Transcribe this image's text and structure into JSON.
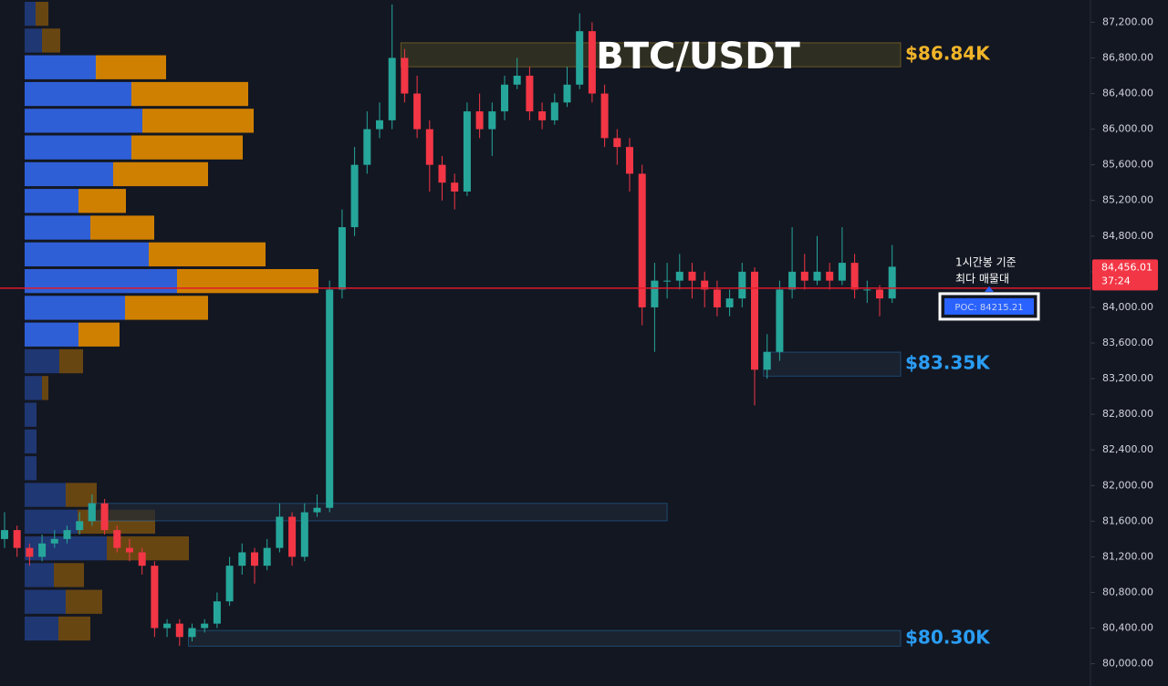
{
  "chart_data": {
    "type": "candlestick",
    "title": "BTC/USDT",
    "colors": {
      "up": "#26a69a",
      "down": "#f23645",
      "background": "#131722"
    },
    "ylim": [
      79750,
      87450
    ],
    "yticks": [
      {
        "value": 80000,
        "label": "80,000.00"
      },
      {
        "value": 80400,
        "label": "80,400.00"
      },
      {
        "value": 80800,
        "label": "80,800.00"
      },
      {
        "value": 81200,
        "label": "81,200.00"
      },
      {
        "value": 81600,
        "label": "81,600.00"
      },
      {
        "value": 82000,
        "label": "82,000.00"
      },
      {
        "value": 82400,
        "label": "82,400.00"
      },
      {
        "value": 82800,
        "label": "82,800.00"
      },
      {
        "value": 83200,
        "label": "83,200.00"
      },
      {
        "value": 83600,
        "label": "83,600.00"
      },
      {
        "value": 84000,
        "label": "84,000.00"
      },
      {
        "value": 84400,
        "label": "84,400.00"
      },
      {
        "value": 84800,
        "label": "84,800.00"
      },
      {
        "value": 85200,
        "label": "85,200.00"
      },
      {
        "value": 85600,
        "label": "85,600.00"
      },
      {
        "value": 86000,
        "label": "86,000.00"
      },
      {
        "value": 86400,
        "label": "86,400.00"
      },
      {
        "value": 86800,
        "label": "86,800.00"
      },
      {
        "value": 87200,
        "label": "87,200.00"
      }
    ],
    "candles": [
      [
        81400,
        81700,
        81300,
        81500
      ],
      [
        81500,
        81550,
        81200,
        81300
      ],
      [
        81300,
        81350,
        81100,
        81200
      ],
      [
        81200,
        81450,
        81150,
        81350
      ],
      [
        81350,
        81500,
        81300,
        81400
      ],
      [
        81400,
        81550,
        81350,
        81500
      ],
      [
        81500,
        81700,
        81450,
        81600
      ],
      [
        81600,
        81900,
        81550,
        81800
      ],
      [
        81800,
        81850,
        81450,
        81500
      ],
      [
        81500,
        81550,
        81250,
        81300
      ],
      [
        81300,
        81400,
        81150,
        81250
      ],
      [
        81250,
        81300,
        81000,
        81100
      ],
      [
        81100,
        81150,
        80300,
        80400
      ],
      [
        80400,
        80500,
        80300,
        80450
      ],
      [
        80450,
        80500,
        80200,
        80300
      ],
      [
        80300,
        80450,
        80250,
        80400
      ],
      [
        80400,
        80500,
        80350,
        80450
      ],
      [
        80450,
        80800,
        80400,
        80700
      ],
      [
        80700,
        81200,
        80650,
        81100
      ],
      [
        81100,
        81350,
        81000,
        81250
      ],
      [
        81250,
        81300,
        80900,
        81100
      ],
      [
        81100,
        81400,
        81050,
        81300
      ],
      [
        81300,
        81800,
        81250,
        81650
      ],
      [
        81650,
        81700,
        81100,
        81200
      ],
      [
        81200,
        81800,
        81150,
        81700
      ],
      [
        81700,
        81900,
        81650,
        81750
      ],
      [
        81750,
        84300,
        81700,
        84200
      ],
      [
        84200,
        85100,
        84100,
        84900
      ],
      [
        84900,
        85800,
        84800,
        85600
      ],
      [
        85600,
        86200,
        85500,
        86000
      ],
      [
        86000,
        86300,
        85900,
        86100
      ],
      [
        86100,
        87400,
        86000,
        86800
      ],
      [
        86800,
        86900,
        86300,
        86400
      ],
      [
        86400,
        86600,
        85900,
        86000
      ],
      [
        86000,
        86100,
        85300,
        85600
      ],
      [
        85600,
        85700,
        85200,
        85400
      ],
      [
        85400,
        85500,
        85100,
        85300
      ],
      [
        85300,
        86300,
        85250,
        86200
      ],
      [
        86200,
        86400,
        85900,
        86000
      ],
      [
        86000,
        86300,
        85700,
        86200
      ],
      [
        86200,
        86600,
        86100,
        86500
      ],
      [
        86500,
        86800,
        86450,
        86600
      ],
      [
        86600,
        86700,
        86100,
        86200
      ],
      [
        86200,
        86300,
        86000,
        86100
      ],
      [
        86100,
        86400,
        86050,
        86300
      ],
      [
        86300,
        86700,
        86250,
        86500
      ],
      [
        86500,
        87300,
        86450,
        87100
      ],
      [
        87100,
        87200,
        86300,
        86400
      ],
      [
        86400,
        86500,
        85800,
        85900
      ],
      [
        85900,
        86000,
        85600,
        85800
      ],
      [
        85800,
        85900,
        85300,
        85500
      ],
      [
        85500,
        85600,
        83800,
        84000
      ],
      [
        84000,
        84500,
        83500,
        84300
      ],
      [
        84300,
        84500,
        84100,
        84300
      ],
      [
        84300,
        84600,
        84200,
        84400
      ],
      [
        84400,
        84500,
        84100,
        84300
      ],
      [
        84300,
        84400,
        84000,
        84200
      ],
      [
        84200,
        84300,
        83900,
        84000
      ],
      [
        84000,
        84200,
        83900,
        84100
      ],
      [
        84100,
        84500,
        84000,
        84400
      ],
      [
        84400,
        84450,
        82900,
        83300
      ],
      [
        83300,
        83700,
        83200,
        83500
      ],
      [
        83500,
        84300,
        83400,
        84200
      ],
      [
        84200,
        84900,
        84100,
        84400
      ],
      [
        84400,
        84600,
        84200,
        84300
      ],
      [
        84300,
        84800,
        84250,
        84400
      ],
      [
        84400,
        84500,
        84200,
        84300
      ],
      [
        84300,
        84900,
        84250,
        84500
      ],
      [
        84500,
        84600,
        84100,
        84200
      ],
      [
        84200,
        84300,
        84050,
        84200
      ],
      [
        84200,
        84250,
        83900,
        84100
      ],
      [
        84100,
        84700,
        84050,
        84456
      ]
    ],
    "zones": [
      {
        "from": 32,
        "to": 72,
        "low": 86700,
        "high": 86970,
        "label": "$86.84K",
        "color": "#f0b429",
        "fill": "#3a3a22"
      },
      {
        "from": 61,
        "to": 72,
        "low": 83228,
        "high": 83497,
        "label": "$83.35K",
        "color": "#2a9df4",
        "fill": "#1e2635"
      },
      {
        "from": 7,
        "to": 53,
        "low": 81604,
        "high": 81800,
        "color": "#2a9df4",
        "fill": "#1e2635"
      },
      {
        "from": 15,
        "to": 72,
        "low": 80197,
        "high": 80373,
        "label": "$80.30K",
        "color": "#2a9df4",
        "fill": "#1e2a35"
      }
    ],
    "poc": {
      "value": 84215.21,
      "label": "POC: 84215.21",
      "note": [
        "1시간봉 기준",
        "최다 매물대"
      ]
    },
    "last_price": {
      "value": 84456.01,
      "label": "84,456.01",
      "timer": "37:24"
    },
    "volume_profile": {
      "buy_color": "#2f5fd6",
      "sell_color": "#d08000",
      "value_area_rows": [
        2,
        12
      ],
      "top": 87450,
      "row_height": 300,
      "buy": [
        12,
        19,
        78,
        117,
        129,
        117,
        97,
        59,
        72,
        136,
        167,
        110,
        59,
        38,
        19,
        13,
        13,
        13,
        45,
        58,
        90,
        32,
        45,
        37
      ],
      "sell": [
        14,
        20,
        77,
        128,
        122,
        122,
        104,
        52,
        70,
        128,
        155,
        91,
        45,
        26,
        7,
        0,
        0,
        0,
        34,
        85,
        90,
        33,
        40,
        35
      ]
    }
  }
}
